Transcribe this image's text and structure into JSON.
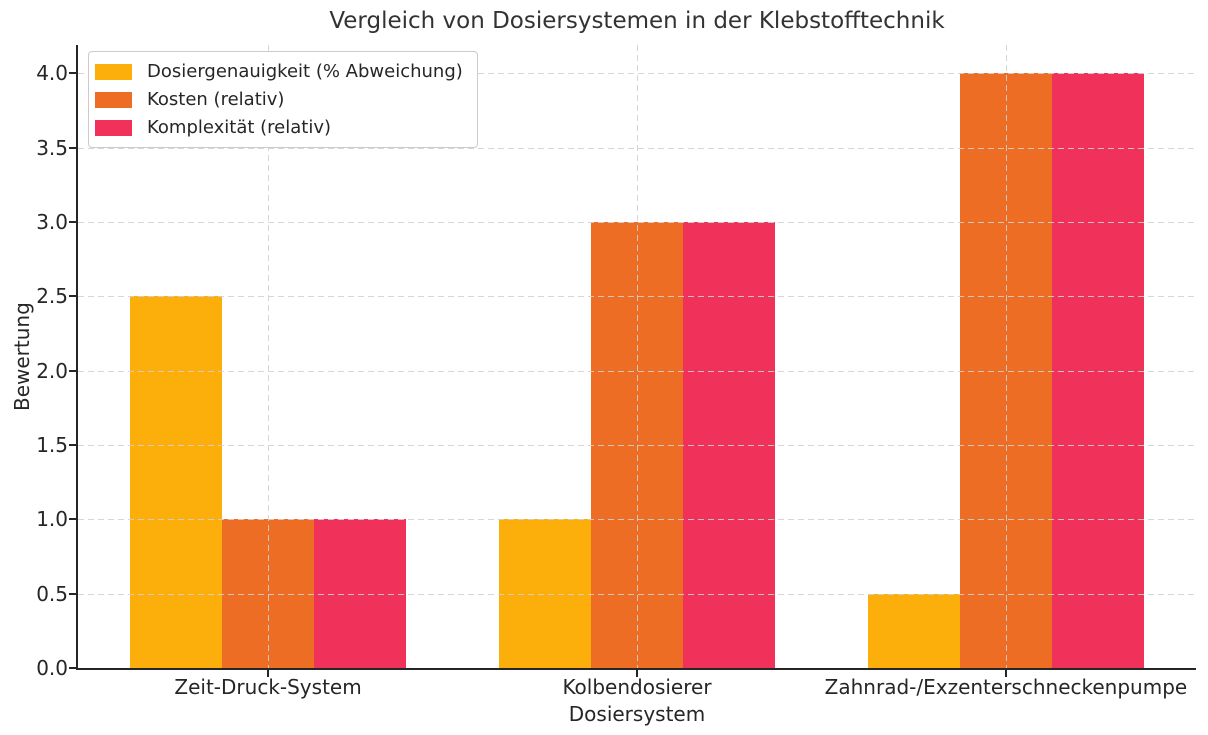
{
  "chart_data": {
    "type": "bar",
    "title": "Vergleich von Dosiersystemen in der Klebstofftechnik",
    "xlabel": "Dosiersystem",
    "ylabel": "Bewertung",
    "categories": [
      "Zeit-Druck-System",
      "Kolbendosierer",
      "Zahnrad-/Exzenterschneckenpumpe"
    ],
    "series": [
      {
        "name": "Dosiergenauigkeit (% Abweichung)",
        "color": "#FCAE0A",
        "values": [
          2.5,
          1.0,
          0.5
        ]
      },
      {
        "name": "Kosten (relativ)",
        "color": "#ED6D24",
        "values": [
          1.0,
          3.0,
          4.0
        ]
      },
      {
        "name": "Komplexität (relativ)",
        "color": "#F0325B",
        "values": [
          1.0,
          3.0,
          4.0
        ]
      }
    ],
    "yticks": [
      0.0,
      0.5,
      1.0,
      1.5,
      2.0,
      2.5,
      3.0,
      3.5,
      4.0
    ],
    "ylim": [
      0,
      4.19
    ],
    "grid": true,
    "grid_style": "dashed",
    "legend_position": "upper-left",
    "background_color": "#ffffff",
    "text_color": "#262626"
  }
}
